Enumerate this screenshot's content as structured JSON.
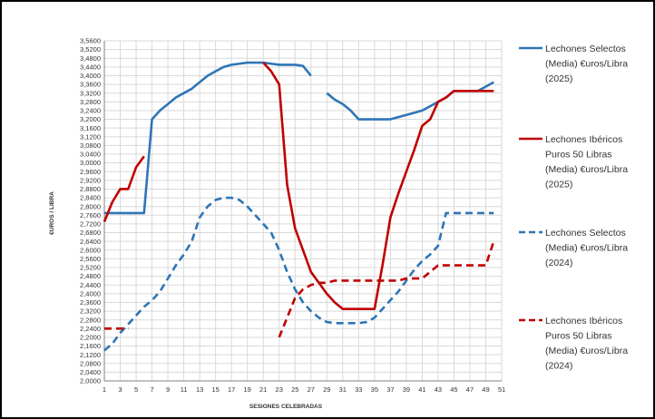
{
  "chart_data": {
    "type": "line",
    "xlabel": "SESIONES CELEBRADAS",
    "ylabel": "€UROS / LIBRA",
    "xlim": [
      1,
      51
    ],
    "x_ticks": [
      1,
      3,
      5,
      7,
      9,
      11,
      13,
      15,
      17,
      19,
      21,
      23,
      25,
      27,
      29,
      31,
      33,
      35,
      37,
      39,
      41,
      43,
      45,
      47,
      49,
      51
    ],
    "ylim": [
      2.0,
      3.56
    ],
    "y_step": 0.04,
    "y_decimals": 4,
    "decimal_separator": ",",
    "grid": true,
    "legend_position": "right",
    "series": [
      {
        "name": "Lechones Selectos (Media) €uros/Libra (2025)",
        "color": "#2e75b6",
        "style": "solid",
        "points": [
          [
            1,
            2.77
          ],
          [
            2,
            2.77
          ],
          [
            3,
            2.77
          ],
          [
            4,
            2.77
          ],
          [
            5,
            2.77
          ],
          [
            6,
            2.77
          ],
          [
            7,
            3.2
          ],
          [
            8,
            3.24
          ],
          [
            9,
            3.27
          ],
          [
            10,
            3.3
          ],
          [
            11,
            3.32
          ],
          [
            12,
            3.34
          ],
          [
            13,
            3.37
          ],
          [
            14,
            3.4
          ],
          [
            15,
            3.42
          ],
          [
            16,
            3.44
          ],
          [
            17,
            3.45
          ],
          [
            18,
            3.455
          ],
          [
            19,
            3.46
          ],
          [
            20,
            3.46
          ],
          [
            21,
            3.46
          ],
          [
            22,
            3.455
          ],
          [
            23,
            3.45
          ],
          [
            24,
            3.45
          ],
          [
            25,
            3.45
          ],
          [
            26,
            3.445
          ],
          [
            27,
            3.4
          ],
          null,
          [
            29,
            3.32
          ],
          [
            30,
            3.29
          ],
          [
            31,
            3.27
          ],
          [
            32,
            3.24
          ],
          [
            33,
            3.2
          ],
          [
            34,
            3.2
          ],
          [
            35,
            3.2
          ],
          [
            36,
            3.2
          ],
          [
            37,
            3.2
          ],
          [
            38,
            3.21
          ],
          [
            39,
            3.22
          ],
          [
            40,
            3.23
          ],
          [
            41,
            3.24
          ],
          [
            42,
            3.26
          ],
          [
            43,
            3.28
          ],
          [
            44,
            3.3
          ],
          [
            45,
            3.33
          ],
          [
            46,
            3.33
          ],
          [
            47,
            3.33
          ],
          [
            48,
            3.33
          ],
          [
            49,
            3.35
          ],
          [
            50,
            3.37
          ]
        ]
      },
      {
        "name": "Lechones Ibéricos Puros 50 Libras (Media) €uros/Libra (2025)",
        "color": "#c00000",
        "style": "solid",
        "points": [
          [
            1,
            2.73
          ],
          [
            2,
            2.82
          ],
          [
            3,
            2.88
          ],
          [
            4,
            2.88
          ],
          [
            5,
            2.98
          ],
          [
            6,
            3.03
          ],
          null,
          [
            21,
            3.46
          ],
          [
            22,
            3.42
          ],
          [
            23,
            3.36
          ],
          [
            24,
            2.9
          ],
          [
            25,
            2.7
          ],
          [
            26,
            2.6
          ],
          [
            27,
            2.5
          ],
          [
            28,
            2.45
          ],
          [
            29,
            2.4
          ],
          [
            30,
            2.36
          ],
          [
            31,
            2.33
          ],
          [
            32,
            2.33
          ],
          [
            33,
            2.33
          ],
          [
            34,
            2.33
          ],
          [
            35,
            2.33
          ],
          [
            36,
            2.53
          ],
          [
            37,
            2.75
          ],
          [
            38,
            2.86
          ],
          [
            39,
            2.96
          ],
          [
            40,
            3.06
          ],
          [
            41,
            3.17
          ],
          [
            42,
            3.2
          ],
          [
            43,
            3.28
          ],
          [
            44,
            3.3
          ],
          [
            45,
            3.33
          ],
          [
            46,
            3.33
          ],
          [
            47,
            3.33
          ],
          [
            48,
            3.33
          ],
          [
            49,
            3.33
          ],
          [
            50,
            3.33
          ]
        ]
      },
      {
        "name": "Lechones Selectos (Media) €uros/Libra (2024)",
        "color": "#2e75b6",
        "style": "dashed",
        "points": [
          [
            1,
            2.14
          ],
          [
            2,
            2.17
          ],
          [
            3,
            2.22
          ],
          [
            4,
            2.26
          ],
          [
            5,
            2.3
          ],
          [
            6,
            2.34
          ],
          [
            7,
            2.37
          ],
          [
            8,
            2.41
          ],
          [
            9,
            2.47
          ],
          [
            10,
            2.53
          ],
          [
            11,
            2.58
          ],
          [
            12,
            2.64
          ],
          [
            13,
            2.75
          ],
          [
            14,
            2.8
          ],
          [
            15,
            2.83
          ],
          [
            16,
            2.84
          ],
          [
            17,
            2.84
          ],
          [
            18,
            2.83
          ],
          [
            19,
            2.8
          ],
          [
            20,
            2.76
          ],
          [
            21,
            2.72
          ],
          [
            22,
            2.68
          ],
          [
            23,
            2.6
          ],
          [
            24,
            2.5
          ],
          [
            25,
            2.42
          ],
          [
            26,
            2.36
          ],
          [
            27,
            2.32
          ],
          [
            28,
            2.29
          ],
          [
            29,
            2.27
          ],
          [
            30,
            2.265
          ],
          [
            31,
            2.265
          ],
          [
            32,
            2.265
          ],
          [
            33,
            2.265
          ],
          [
            34,
            2.27
          ],
          [
            35,
            2.29
          ],
          [
            36,
            2.33
          ],
          [
            37,
            2.37
          ],
          [
            38,
            2.41
          ],
          [
            39,
            2.46
          ],
          [
            40,
            2.51
          ],
          [
            41,
            2.55
          ],
          [
            42,
            2.58
          ],
          [
            43,
            2.62
          ],
          [
            44,
            2.77
          ],
          [
            45,
            2.77
          ],
          [
            46,
            2.77
          ],
          [
            47,
            2.77
          ],
          [
            48,
            2.77
          ],
          [
            49,
            2.77
          ],
          [
            50,
            2.77
          ]
        ]
      },
      {
        "name": "Lechones Ibéricos Puros 50 Libras (Media) €uros/Libra (2024)",
        "color": "#c00000",
        "style": "dashed",
        "points": [
          [
            1,
            2.24
          ],
          [
            2,
            2.24
          ],
          [
            3,
            2.24
          ],
          [
            4,
            2.24
          ],
          null,
          [
            23,
            2.2
          ],
          [
            24,
            2.29
          ],
          [
            25,
            2.38
          ],
          [
            26,
            2.42
          ],
          [
            27,
            2.44
          ],
          [
            28,
            2.45
          ],
          [
            29,
            2.45
          ],
          [
            30,
            2.46
          ],
          [
            31,
            2.46
          ],
          [
            32,
            2.46
          ],
          [
            33,
            2.46
          ],
          [
            34,
            2.46
          ],
          [
            35,
            2.46
          ],
          [
            36,
            2.46
          ],
          [
            37,
            2.46
          ],
          [
            38,
            2.46
          ],
          [
            39,
            2.47
          ],
          [
            40,
            2.47
          ],
          [
            41,
            2.47
          ],
          [
            42,
            2.5
          ],
          [
            43,
            2.53
          ],
          [
            44,
            2.53
          ],
          [
            45,
            2.53
          ],
          [
            46,
            2.53
          ],
          [
            47,
            2.53
          ],
          [
            48,
            2.53
          ],
          [
            49,
            2.53
          ],
          [
            50,
            2.64
          ]
        ]
      }
    ],
    "legend": [
      {
        "lines": [
          "Lechones Selectos",
          "(Media) €uros/Libra",
          "(2025)"
        ]
      },
      {
        "lines": [
          "Lechones Ibéricos",
          "Puros  50 Libras",
          "(Media) €uros/Libra",
          "(2025)"
        ]
      },
      {
        "lines": [
          "Lechones Selectos",
          "(Media) €uros/Libra",
          "(2024)"
        ]
      },
      {
        "lines": [
          "Lechones Ibéricos",
          "Puros  50 Libras",
          "(Media) €uros/Libra",
          "(2024)"
        ]
      }
    ]
  }
}
